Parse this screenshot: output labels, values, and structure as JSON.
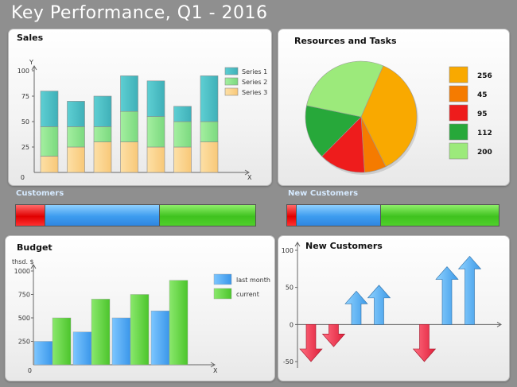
{
  "page_title": "Key Performance, Q1 - 2016",
  "colors": {
    "teal": "#4fbfc6",
    "lightgreen": "#8fe48f",
    "peach": "#fbd48e",
    "orange_pie": "#f9a900",
    "orange2": "#f57b00",
    "red": "#ee1c1c",
    "green": "#27a83a",
    "palegreen": "#9cea7b",
    "blue": "#4fa8ec",
    "arrow_red": "#e8304a"
  },
  "sales": {
    "title": "Sales",
    "chart_data": {
      "type": "bar",
      "stacked": true,
      "title": "Sales",
      "xlabel": "X",
      "ylabel": "Y",
      "ylim": [
        0,
        100
      ],
      "yticks": [
        "0",
        "25",
        "50",
        "75",
        "100"
      ],
      "categories": [
        "",
        "",
        "",
        "",
        "",
        "",
        ""
      ],
      "series": [
        {
          "name": "Series 1",
          "values": [
            35,
            25,
            30,
            35,
            35,
            15,
            45
          ]
        },
        {
          "name": "Series 2",
          "values": [
            29,
            20,
            15,
            30,
            30,
            25,
            20
          ]
        },
        {
          "name": "Series 3",
          "values": [
            16,
            25,
            30,
            30,
            25,
            25,
            30
          ]
        }
      ],
      "legend_position": "right"
    }
  },
  "resources": {
    "title": "Resources and Tasks",
    "chart_data": {
      "type": "pie",
      "title": "Resources and Tasks",
      "slices": [
        {
          "label": "256",
          "value": 256
        },
        {
          "label": "45",
          "value": 45
        },
        {
          "label": "95",
          "value": 95
        },
        {
          "label": "112",
          "value": 112
        },
        {
          "label": "200",
          "value": 200
        }
      ],
      "legend_position": "right"
    }
  },
  "customers": {
    "label": "Customers",
    "segments": [
      12,
      48,
      40
    ]
  },
  "new_customers_bar": {
    "label": "New Customers",
    "segments": [
      4,
      40,
      56
    ]
  },
  "budget": {
    "title": "Budget",
    "chart_data": {
      "type": "bar",
      "title": "Budget",
      "ylabel": "thsd. $",
      "xlabel": "X",
      "ylim": [
        0,
        1000
      ],
      "yticks": [
        "0",
        "250",
        "500",
        "750",
        "1000"
      ],
      "categories": [
        "",
        "",
        "",
        ""
      ],
      "series": [
        {
          "name": "last month",
          "values": [
            250,
            350,
            500,
            575
          ]
        },
        {
          "name": "current",
          "values": [
            500,
            700,
            750,
            900
          ]
        }
      ],
      "legend_position": "top-right"
    }
  },
  "new_customers": {
    "title": "New Customers",
    "chart_data": {
      "type": "bar",
      "title": "New Customers",
      "ylim": [
        -50,
        100
      ],
      "yticks": [
        "-50",
        "0",
        "50",
        "100"
      ],
      "categories": [
        "",
        "",
        "",
        "",
        "",
        "",
        "",
        ""
      ],
      "values": [
        -50,
        -30,
        45,
        53,
        0,
        -50,
        78,
        92
      ],
      "marker": "arrow"
    }
  }
}
